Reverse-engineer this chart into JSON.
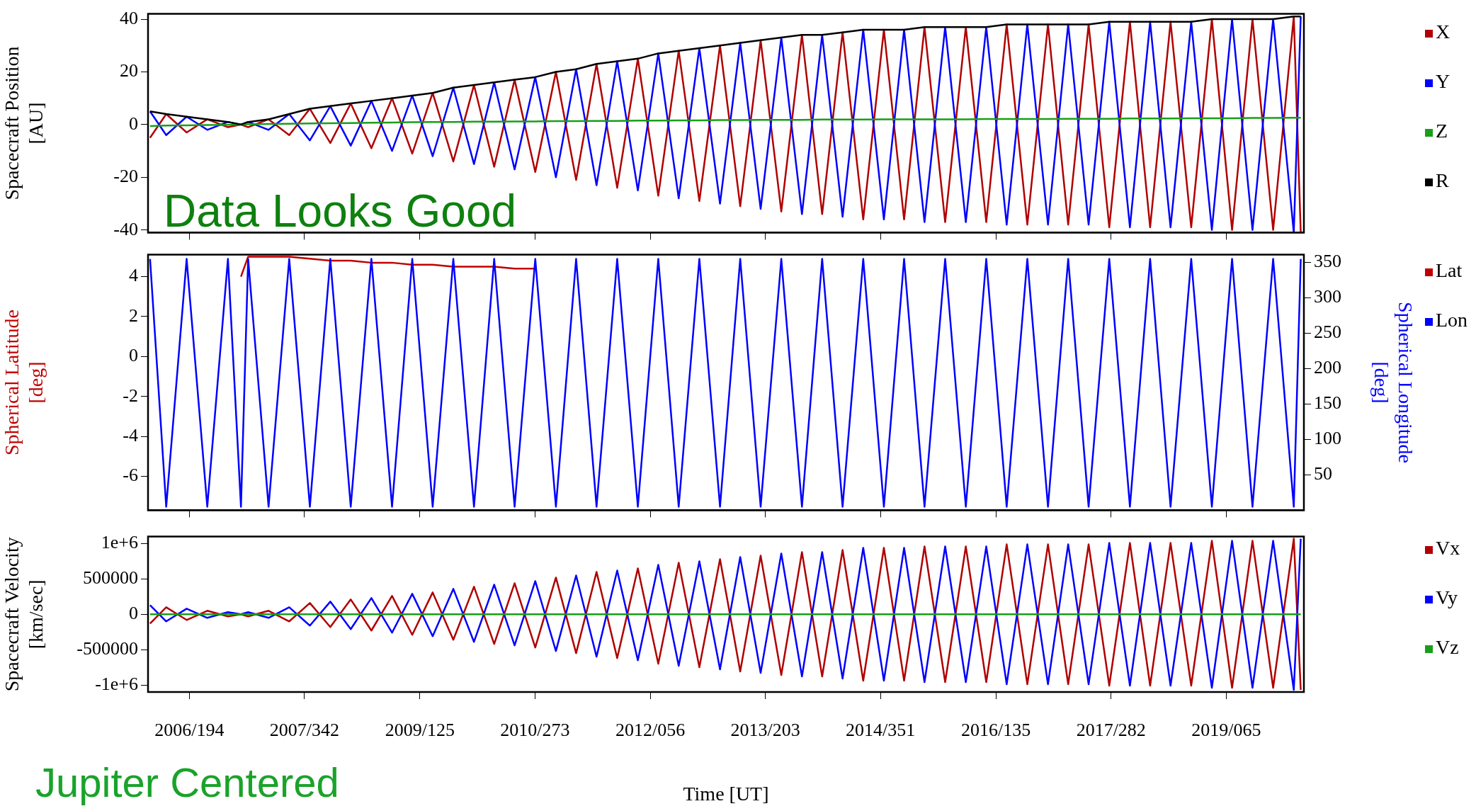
{
  "chart_data": [
    {
      "type": "line",
      "ylabel": "Spacecraft Position [AU]",
      "annotations": [
        "Data Looks Good"
      ],
      "x": [
        "2006-01-19",
        "2006-04-01",
        "2006-07-01",
        "2006-10-01",
        "2007-01-01",
        "2007-02-28",
        "2007-04-01",
        "2007-07-01",
        "2007-10-01",
        "2008-01-01",
        "2008-04-01",
        "2008-07-01",
        "2008-10-01",
        "2009-01-01",
        "2009-04-01",
        "2009-07-01",
        "2009-10-01",
        "2010-01-01",
        "2010-04-01",
        "2010-07-01",
        "2010-10-01",
        "2011-01-01",
        "2011-04-01",
        "2011-07-01",
        "2011-10-01",
        "2012-01-01",
        "2012-04-01",
        "2012-07-01",
        "2012-10-01",
        "2013-01-01",
        "2013-04-01",
        "2013-07-01",
        "2013-10-01",
        "2014-01-01",
        "2014-04-01",
        "2014-07-01",
        "2014-10-01",
        "2015-01-01",
        "2015-04-01",
        "2015-07-01",
        "2015-10-01",
        "2016-01-01",
        "2016-04-01",
        "2016-07-01",
        "2016-10-01",
        "2017-01-01",
        "2017-04-01",
        "2017-07-01",
        "2017-10-01",
        "2018-01-01",
        "2018-04-01",
        "2018-07-01",
        "2018-10-01",
        "2019-01-01",
        "2019-04-01",
        "2019-07-01",
        "2019-10-01",
        "2020-01-01",
        "2020-02-01"
      ],
      "series": [
        {
          "name": "X",
          "color": "#b00000",
          "values": [
            -5,
            4,
            -3,
            2,
            -1,
            0,
            -1,
            2,
            -4,
            6,
            -7,
            8,
            -9,
            10,
            -11,
            12,
            -14,
            15,
            -16,
            17,
            -18,
            20,
            -21,
            23,
            -24,
            25,
            -27,
            28,
            -29,
            30,
            -31,
            32,
            -33,
            34,
            -34,
            35,
            -36,
            36,
            -36,
            37,
            -37,
            37,
            -37,
            38,
            -38,
            38,
            -38,
            38,
            -39,
            39,
            -39,
            39,
            -39,
            40,
            -40,
            40,
            -40,
            41,
            -41
          ]
        },
        {
          "name": "Y",
          "color": "#0000ff",
          "values": [
            5,
            -4,
            3,
            -2,
            1,
            0,
            1,
            -2,
            4,
            -6,
            7,
            -8,
            9,
            -10,
            11,
            -12,
            14,
            -15,
            16,
            -17,
            18,
            -20,
            21,
            -23,
            24,
            -25,
            27,
            -28,
            29,
            -30,
            31,
            -32,
            33,
            -34,
            34,
            -35,
            36,
            -36,
            36,
            -37,
            37,
            -37,
            37,
            -38,
            38,
            -38,
            38,
            -38,
            39,
            -39,
            39,
            -39,
            39,
            -40,
            40,
            -40,
            40,
            -41,
            41
          ]
        },
        {
          "name": "Z",
          "color": "#1a9e1a",
          "values": [
            -0.6,
            -0.4,
            -0.3,
            -0.2,
            -0.1,
            0,
            0.1,
            0.2,
            0.3,
            0.4,
            0.5,
            0.6,
            0.7,
            0.8,
            0.9,
            1,
            1,
            1.1,
            1.1,
            1.2,
            1.2,
            1.3,
            1.3,
            1.4,
            1.4,
            1.5,
            1.5,
            1.6,
            1.6,
            1.7,
            1.7,
            1.8,
            1.8,
            1.8,
            1.9,
            1.9,
            1.9,
            2,
            2,
            2,
            2,
            2,
            2.1,
            2.1,
            2.1,
            2.1,
            2.2,
            2.2,
            2.2,
            2.3,
            2.3,
            2.3,
            2.4,
            2.4,
            2.4,
            2.5,
            2.5,
            2.6,
            2.6
          ]
        },
        {
          "name": "R",
          "color": "#000000",
          "values": [
            5,
            4,
            3,
            2,
            1,
            0,
            1,
            2,
            4,
            6,
            7,
            8,
            9,
            10,
            11,
            12,
            14,
            15,
            16,
            17,
            18,
            20,
            21,
            23,
            24,
            25,
            27,
            28,
            29,
            30,
            31,
            32,
            33,
            34,
            34,
            35,
            36,
            36,
            36,
            37,
            37,
            37,
            37,
            38,
            38,
            38,
            38,
            38,
            39,
            39,
            39,
            39,
            39,
            40,
            40,
            40,
            40,
            41,
            41
          ]
        }
      ],
      "xlim": [
        "2006-01-10",
        "2020-02-15"
      ],
      "xticks": [
        {
          "value": "2006-07-13",
          "label": null
        },
        {
          "value": "2007-12-08",
          "label": null
        },
        {
          "value": "2009-05-05",
          "label": null
        },
        {
          "value": "2010-09-30",
          "label": null
        },
        {
          "value": "2012-02-25",
          "label": null
        },
        {
          "value": "2013-07-22",
          "label": null
        },
        {
          "value": "2014-12-17",
          "label": null
        },
        {
          "value": "2016-05-14",
          "label": null
        },
        {
          "value": "2017-10-09",
          "label": null
        },
        {
          "value": "2019-03-06",
          "label": null
        }
      ],
      "ylim": [
        -41,
        42
      ],
      "yticks": [
        -40,
        -20,
        0,
        20,
        40
      ],
      "tick_labels": "y",
      "legend": "right"
    },
    {
      "type": "line",
      "ylabel": "Spherical Latitude [deg]",
      "y2label": "Spherical Longitude [deg]",
      "x": [
        "2006-01-19",
        "2006-04-01",
        "2006-07-01",
        "2006-10-01",
        "2007-01-01",
        "2007-02-28",
        "2007-04-01",
        "2007-07-01",
        "2007-10-01",
        "2008-01-01",
        "2008-04-01",
        "2008-07-01",
        "2008-10-01",
        "2009-01-01",
        "2009-04-01",
        "2009-07-01",
        "2009-10-01",
        "2010-01-01",
        "2010-04-01",
        "2010-07-01",
        "2010-10-01",
        "2011-01-01",
        "2011-04-01",
        "2011-07-01",
        "2011-10-01",
        "2012-01-01",
        "2012-04-01",
        "2012-07-01",
        "2012-10-01",
        "2013-01-01",
        "2013-04-01",
        "2013-07-01",
        "2013-10-01",
        "2014-01-01",
        "2014-04-01",
        "2014-07-01",
        "2014-10-01",
        "2015-01-01",
        "2015-04-01",
        "2015-07-01",
        "2015-10-01",
        "2016-01-01",
        "2016-04-01",
        "2016-07-01",
        "2016-10-01",
        "2017-01-01",
        "2017-04-01",
        "2017-07-01",
        "2017-10-01",
        "2018-01-01",
        "2018-04-01",
        "2018-07-01",
        "2018-10-01",
        "2019-01-01",
        "2019-04-01",
        "2019-07-01",
        "2019-10-01",
        "2020-01-01",
        "2020-02-01"
      ],
      "series": [
        {
          "name": "Lat",
          "color": "#c00000",
          "values": [
            null,
            null,
            null,
            null,
            null,
            4,
            5,
            5,
            5,
            4.9,
            4.8,
            4.8,
            4.7,
            4.7,
            4.6,
            4.6,
            4.5,
            4.5,
            4.5,
            4.4,
            4.4,
            null,
            null,
            null,
            null,
            null,
            null,
            null,
            null,
            null,
            null,
            null,
            null,
            null,
            null,
            null,
            null,
            null,
            null,
            null,
            null,
            null,
            null,
            null,
            null,
            null,
            null,
            null,
            null,
            null,
            null,
            null,
            null,
            null,
            null,
            null,
            null,
            null,
            null
          ]
        },
        {
          "name": "Lon",
          "color": "#0000ff",
          "axis": "y2",
          "values": [
            355,
            5,
            355,
            5,
            355,
            5,
            355,
            5,
            355,
            5,
            355,
            5,
            355,
            5,
            355,
            5,
            355,
            5,
            355,
            5,
            355,
            5,
            355,
            5,
            355,
            5,
            355,
            5,
            355,
            5,
            355,
            5,
            355,
            5,
            355,
            5,
            355,
            5,
            355,
            5,
            355,
            5,
            355,
            5,
            355,
            5,
            355,
            5,
            355,
            5,
            355,
            5,
            355,
            5,
            355,
            5,
            355,
            5,
            355
          ]
        }
      ],
      "xlim": [
        "2006-01-10",
        "2020-02-15"
      ],
      "xticks": [
        {
          "value": "2006-07-13",
          "label": null
        },
        {
          "value": "2007-12-08",
          "label": null
        },
        {
          "value": "2009-05-05",
          "label": null
        },
        {
          "value": "2010-09-30",
          "label": null
        },
        {
          "value": "2012-02-25",
          "label": null
        },
        {
          "value": "2013-07-22",
          "label": null
        },
        {
          "value": "2014-12-17",
          "label": null
        },
        {
          "value": "2016-05-14",
          "label": null
        },
        {
          "value": "2017-10-09",
          "label": null
        },
        {
          "value": "2019-03-06",
          "label": null
        }
      ],
      "ylim": [
        -7.7,
        5.1
      ],
      "yticks": [
        -6,
        -4,
        -2,
        0,
        2,
        4
      ],
      "y2lim": [
        0,
        361
      ],
      "y2ticks": [
        50,
        100,
        150,
        200,
        250,
        300,
        350
      ],
      "tick_labels": "y",
      "legend": "right"
    },
    {
      "type": "line",
      "ylabel": "Spacecraft Velocity [km/sec]",
      "xlabel": "Time [UT]",
      "annotations": [
        "Jupiter Centered"
      ],
      "x": [
        "2006-01-19",
        "2006-04-01",
        "2006-07-01",
        "2006-10-01",
        "2007-01-01",
        "2007-02-28",
        "2007-04-01",
        "2007-07-01",
        "2007-10-01",
        "2008-01-01",
        "2008-04-01",
        "2008-07-01",
        "2008-10-01",
        "2009-01-01",
        "2009-04-01",
        "2009-07-01",
        "2009-10-01",
        "2010-01-01",
        "2010-04-01",
        "2010-07-01",
        "2010-10-01",
        "2011-01-01",
        "2011-04-01",
        "2011-07-01",
        "2011-10-01",
        "2012-01-01",
        "2012-04-01",
        "2012-07-01",
        "2012-10-01",
        "2013-01-01",
        "2013-04-01",
        "2013-07-01",
        "2013-10-01",
        "2014-01-01",
        "2014-04-01",
        "2014-07-01",
        "2014-10-01",
        "2015-01-01",
        "2015-04-01",
        "2015-07-01",
        "2015-10-01",
        "2016-01-01",
        "2016-04-01",
        "2016-07-01",
        "2016-10-01",
        "2017-01-01",
        "2017-04-01",
        "2017-07-01",
        "2017-10-01",
        "2018-01-01",
        "2018-04-01",
        "2018-07-01",
        "2018-10-01",
        "2019-01-01",
        "2019-04-01",
        "2019-07-01",
        "2019-10-01",
        "2020-01-01",
        "2020-02-01"
      ],
      "series": [
        {
          "name": "Vx",
          "color": "#b00000",
          "values": [
            -130000,
            100000,
            -80000,
            50000,
            -30000,
            0,
            -30000,
            50000,
            -100000,
            160000,
            -180000,
            210000,
            -230000,
            260000,
            -290000,
            310000,
            -360000,
            390000,
            -420000,
            440000,
            -470000,
            520000,
            -550000,
            600000,
            -620000,
            650000,
            -700000,
            730000,
            -750000,
            780000,
            -810000,
            830000,
            -860000,
            880000,
            -880000,
            910000,
            -940000,
            940000,
            -940000,
            960000,
            -960000,
            960000,
            -960000,
            990000,
            -990000,
            990000,
            -990000,
            990000,
            -1010000,
            1010000,
            -1010000,
            1010000,
            -1010000,
            1040000,
            -1040000,
            1040000,
            -1040000,
            1070000,
            -1070000
          ]
        },
        {
          "name": "Vy",
          "color": "#0000ff",
          "values": [
            130000,
            -100000,
            80000,
            -50000,
            30000,
            0,
            30000,
            -50000,
            100000,
            -160000,
            180000,
            -210000,
            230000,
            -260000,
            290000,
            -310000,
            360000,
            -390000,
            420000,
            -440000,
            470000,
            -520000,
            550000,
            -600000,
            620000,
            -650000,
            700000,
            -730000,
            750000,
            -780000,
            810000,
            -830000,
            860000,
            -880000,
            880000,
            -910000,
            940000,
            -940000,
            940000,
            -960000,
            960000,
            -960000,
            960000,
            -990000,
            990000,
            -990000,
            990000,
            -990000,
            1010000,
            -1010000,
            1010000,
            -1010000,
            1010000,
            -1040000,
            1040000,
            -1040000,
            1040000,
            -1070000,
            1070000
          ]
        },
        {
          "name": "Vz",
          "color": "#1a9e1a",
          "values": [
            0,
            0,
            0,
            0,
            0,
            0,
            0,
            0,
            0,
            0,
            0,
            0,
            0,
            0,
            0,
            0,
            0,
            0,
            0,
            0,
            0,
            0,
            0,
            0,
            0,
            0,
            0,
            0,
            0,
            0,
            0,
            0,
            0,
            0,
            0,
            0,
            0,
            0,
            0,
            0,
            0,
            0,
            0,
            0,
            0,
            0,
            0,
            0,
            0,
            0,
            0,
            0,
            0,
            0,
            0,
            0,
            0,
            0,
            0
          ]
        }
      ],
      "xlim": [
        "2006-01-10",
        "2020-02-15"
      ],
      "xticks": [
        {
          "value": "2006-07-13",
          "label": "2006/194"
        },
        {
          "value": "2007-12-08",
          "label": "2007/342"
        },
        {
          "value": "2009-05-05",
          "label": "2009/125"
        },
        {
          "value": "2010-09-30",
          "label": "2010/273"
        },
        {
          "value": "2012-02-25",
          "label": "2012/056"
        },
        {
          "value": "2013-07-22",
          "label": "2013/203"
        },
        {
          "value": "2014-12-17",
          "label": "2014/351"
        },
        {
          "value": "2016-05-14",
          "label": "2016/135"
        },
        {
          "value": "2017-10-09",
          "label": "2017/282"
        },
        {
          "value": "2019-03-06",
          "label": "2019/065"
        }
      ],
      "ylim": [
        -1100000,
        1100000
      ],
      "yticks": [
        {
          "value": -1000000,
          "label": "-1e+6"
        },
        -500000,
        0,
        500000,
        {
          "value": 1000000,
          "label": "1e+6"
        }
      ],
      "legend": "right"
    }
  ]
}
